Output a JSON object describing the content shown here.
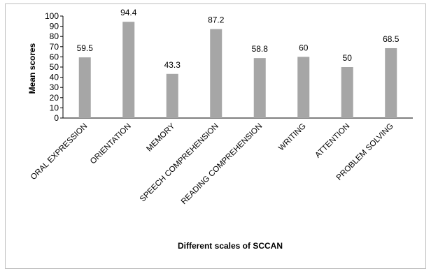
{
  "chart_data": {
    "type": "bar",
    "categories": [
      "ORAL EXPRESSION",
      "ORIENTATION",
      "MEMORY",
      "SPEECH COMPREHENSION",
      "READING COMPREHENSION",
      "WRITING",
      "ATTENTION",
      "PROBLEM SOLVING"
    ],
    "values": [
      59.5,
      94.4,
      43.3,
      87.2,
      58.8,
      60,
      50,
      68.5
    ],
    "value_labels": [
      "59.5",
      "94.4",
      "43.3",
      "87.2",
      "58.8",
      "60",
      "50",
      "68.5"
    ],
    "xlabel": "Different scales of SCCAN",
    "ylabel": "Mean scores",
    "ylim": [
      0,
      100
    ],
    "yticks": [
      "0",
      "10",
      "20",
      "30",
      "40",
      "50",
      "60",
      "70",
      "80",
      "90",
      "100"
    ],
    "bar_color": "#a6a6a6",
    "grid": false,
    "legend": "none"
  }
}
